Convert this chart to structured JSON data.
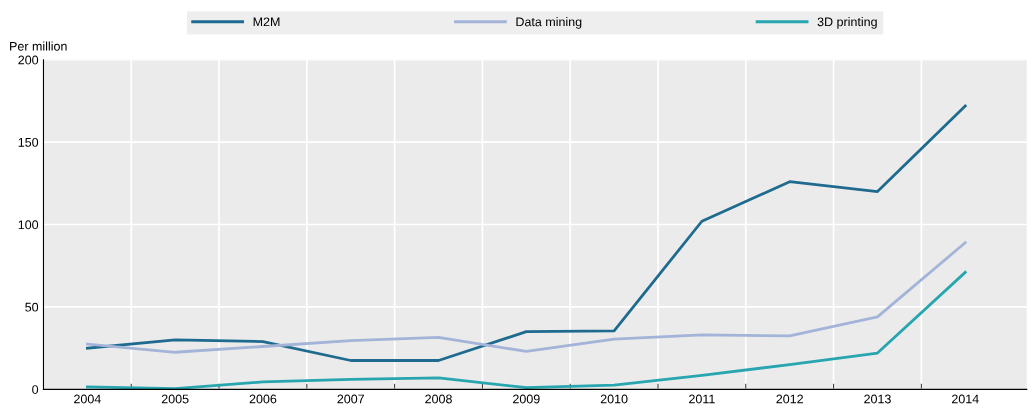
{
  "chart_data": {
    "type": "line",
    "ylabel": "Per million",
    "categories": [
      "2004",
      "2005",
      "2006",
      "2007",
      "2008",
      "2009",
      "2010",
      "2011",
      "2012",
      "2013",
      "2014"
    ],
    "series": [
      {
        "name": "M2M",
        "color": "#1f6b8f",
        "values": [
          25,
          30,
          29,
          17.5,
          17.5,
          35,
          35.5,
          102,
          126,
          120,
          172
        ]
      },
      {
        "name": "Data mining",
        "color": "#a3b4d8",
        "values": [
          27.5,
          22.5,
          26,
          29.5,
          31.5,
          23,
          30.5,
          33,
          32.5,
          44,
          89
        ]
      },
      {
        "name": "3D printing",
        "color": "#27a6b0",
        "values": [
          1.5,
          0.5,
          4.5,
          6,
          7,
          1,
          2.5,
          8.5,
          15,
          22,
          71
        ]
      }
    ],
    "ylim": [
      0,
      200
    ],
    "yticks": [
      0,
      50,
      100,
      150,
      200
    ],
    "grid": true,
    "legend": "top",
    "marker": "none",
    "line_style": "solid"
  }
}
